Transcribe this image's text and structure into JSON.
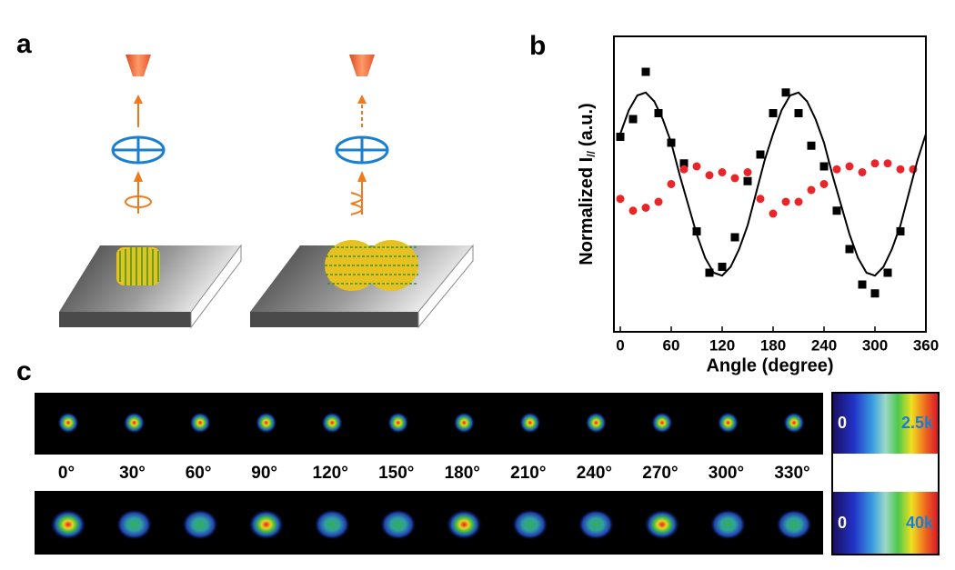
{
  "panel_labels": [
    "a",
    "b",
    "c"
  ],
  "chart_data": {
    "type": "scatter",
    "xlabel": "Angle (degree)",
    "ylabel_parts": [
      "Normalized I",
      "//",
      "(a.u.)"
    ],
    "xlim": [
      -7.5,
      360
    ],
    "ylim": [
      0,
      10
    ],
    "xticks": [
      0,
      60,
      120,
      180,
      240,
      300,
      360
    ],
    "series": [
      {
        "mode": "markers",
        "marker": "square",
        "color": "#000000",
        "x": [
          0,
          15,
          30,
          45,
          60,
          75,
          90,
          105,
          120,
          135,
          150,
          165,
          180,
          195,
          210,
          225,
          240,
          255,
          270,
          285,
          300,
          315,
          330
        ],
        "values": [
          6.6,
          7.2,
          8.8,
          7.4,
          6.4,
          5.7,
          3.4,
          2.0,
          2.2,
          3.2,
          5.1,
          6.0,
          7.4,
          8.1,
          7.4,
          6.3,
          5.6,
          4.1,
          2.8,
          1.6,
          1.3,
          2.0,
          3.4
        ]
      },
      {
        "mode": "markers",
        "marker": "circle",
        "color": "#e8262a",
        "x": [
          0,
          15,
          30,
          45,
          60,
          75,
          90,
          105,
          120,
          135,
          150,
          165,
          180,
          195,
          210,
          225,
          240,
          255,
          270,
          285,
          300,
          315,
          330,
          345
        ],
        "values": [
          4.5,
          4.1,
          4.2,
          4.4,
          5.0,
          5.5,
          5.6,
          5.3,
          5.4,
          5.2,
          5.4,
          4.5,
          4.0,
          4.4,
          4.4,
          4.8,
          5.0,
          5.5,
          5.6,
          5.4,
          5.7,
          5.7,
          5.5,
          5.5
        ]
      },
      {
        "mode": "line",
        "color": "#000000",
        "x": [
          0,
          10,
          20,
          30,
          40,
          50,
          60,
          70,
          80,
          90,
          100,
          110,
          120,
          130,
          140,
          150,
          160,
          170,
          180,
          190,
          200,
          210,
          220,
          230,
          240,
          250,
          260,
          270,
          280,
          290,
          300,
          310,
          320,
          330,
          340,
          350,
          360
        ],
        "values": [
          6.7,
          7.5,
          8.0,
          8.1,
          7.8,
          7.2,
          6.4,
          5.3,
          4.3,
          3.3,
          2.5,
          2.0,
          1.9,
          2.2,
          2.8,
          3.6,
          4.7,
          5.8,
          6.7,
          7.5,
          8.0,
          8.1,
          7.8,
          7.2,
          6.4,
          5.3,
          4.3,
          3.3,
          2.5,
          2.0,
          1.9,
          2.2,
          2.8,
          3.6,
          4.7,
          5.8,
          6.7
        ]
      }
    ]
  },
  "angle_strip": {
    "angles": [
      "0°",
      "30°",
      "60°",
      "90°",
      "120°",
      "150°",
      "180°",
      "210°",
      "240°",
      "270°",
      "300°",
      "330°"
    ],
    "colorbars": [
      {
        "min": "0",
        "max": "2.5k"
      },
      {
        "min": "0",
        "max": "40k"
      }
    ]
  }
}
